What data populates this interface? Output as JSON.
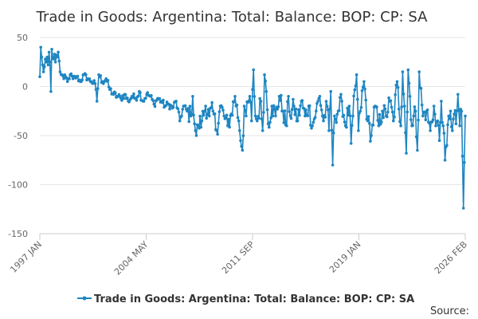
{
  "chart_data": {
    "type": "line",
    "title": "Trade in Goods: Argentina: Total: Balance: BOP: CP: SA",
    "xlabel": "",
    "ylabel": "",
    "ylim": [
      -150,
      50
    ],
    "yticks": [
      50,
      0,
      -50,
      -100,
      -150
    ],
    "x_start": "1997 JAN",
    "x_end": "2026 FEB",
    "xtick_labels": [
      "1997 JAN",
      "2004 MAY",
      "2011 SEP",
      "2019 JAN",
      "2026 FEB"
    ],
    "series": [
      {
        "name": "Trade in Goods: Argentina: Total: Balance: BOP: CP: SA",
        "color": "#1f86c2",
        "anchors": [
          [
            0,
            10
          ],
          [
            1,
            40
          ],
          [
            2,
            30
          ],
          [
            3,
            22
          ],
          [
            4,
            15
          ],
          [
            5,
            20
          ],
          [
            6,
            28
          ],
          [
            7,
            25
          ],
          [
            8,
            30
          ],
          [
            9,
            22
          ],
          [
            10,
            35
          ],
          [
            11,
            25
          ],
          [
            12,
            -5
          ],
          [
            13,
            38
          ],
          [
            14,
            30
          ],
          [
            15,
            28
          ],
          [
            16,
            33
          ],
          [
            17,
            25
          ],
          [
            18,
            32
          ],
          [
            19,
            30
          ],
          [
            20,
            35
          ],
          [
            22,
            15
          ],
          [
            24,
            12
          ],
          [
            26,
            8
          ],
          [
            28,
            10
          ],
          [
            30,
            5
          ],
          [
            33,
            12
          ],
          [
            36,
            8
          ],
          [
            40,
            10
          ],
          [
            44,
            5
          ],
          [
            48,
            12
          ],
          [
            52,
            8
          ],
          [
            56,
            5
          ],
          [
            60,
            3
          ],
          [
            62,
            -15
          ],
          [
            64,
            12
          ],
          [
            68,
            5
          ],
          [
            72,
            8
          ],
          [
            76,
            -3
          ],
          [
            80,
            -8
          ],
          [
            84,
            -10
          ],
          [
            88,
            -12
          ],
          [
            92,
            -8
          ],
          [
            96,
            -15
          ],
          [
            100,
            -10
          ],
          [
            104,
            -12
          ],
          [
            108,
            -5
          ],
          [
            112,
            -15
          ],
          [
            116,
            -8
          ],
          [
            120,
            -10
          ],
          [
            124,
            -18
          ],
          [
            128,
            -12
          ],
          [
            132,
            -15
          ],
          [
            136,
            -20
          ],
          [
            140,
            -18
          ],
          [
            144,
            -22
          ],
          [
            148,
            -15
          ],
          [
            152,
            -35
          ],
          [
            156,
            -20
          ],
          [
            160,
            -25
          ],
          [
            164,
            -30
          ],
          [
            166,
            -10
          ],
          [
            168,
            -38
          ],
          [
            170,
            -50
          ],
          [
            172,
            -40
          ],
          [
            176,
            -35
          ],
          [
            180,
            -20
          ],
          [
            184,
            -30
          ],
          [
            188,
            -25
          ],
          [
            192,
            -45
          ],
          [
            196,
            -20
          ],
          [
            200,
            -30
          ],
          [
            204,
            -40
          ],
          [
            208,
            -28
          ],
          [
            212,
            -10
          ],
          [
            216,
            -35
          ],
          [
            220,
            -65
          ],
          [
            222,
            -20
          ],
          [
            224,
            -30
          ],
          [
            228,
            -10
          ],
          [
            230,
            -35
          ],
          [
            232,
            17
          ],
          [
            234,
            -30
          ],
          [
            236,
            -35
          ],
          [
            240,
            -15
          ],
          [
            242,
            -45
          ],
          [
            244,
            12
          ],
          [
            246,
            -5
          ],
          [
            248,
            -38
          ],
          [
            252,
            -20
          ],
          [
            256,
            -30
          ],
          [
            260,
            -10
          ],
          [
            264,
            -25
          ],
          [
            268,
            -40
          ],
          [
            270,
            -10
          ],
          [
            272,
            -30
          ],
          [
            276,
            -20
          ],
          [
            280,
            -35
          ],
          [
            284,
            -15
          ],
          [
            288,
            -30
          ],
          [
            292,
            -20
          ],
          [
            296,
            -40
          ],
          [
            300,
            -25
          ],
          [
            304,
            -10
          ],
          [
            308,
            -35
          ],
          [
            312,
            -20
          ],
          [
            314,
            -45
          ],
          [
            316,
            -5
          ],
          [
            318,
            -80
          ],
          [
            320,
            -30
          ],
          [
            324,
            -25
          ],
          [
            328,
            -15
          ],
          [
            332,
            -40
          ],
          [
            336,
            -20
          ],
          [
            338,
            -58
          ],
          [
            340,
            -30
          ],
          [
            344,
            12
          ],
          [
            346,
            -45
          ],
          [
            348,
            -25
          ],
          [
            352,
            5
          ],
          [
            356,
            -35
          ],
          [
            360,
            -50
          ],
          [
            364,
            -20
          ],
          [
            368,
            -40
          ],
          [
            372,
            -25
          ],
          [
            376,
            -30
          ],
          [
            380,
            -15
          ],
          [
            384,
            -35
          ],
          [
            388,
            5
          ],
          [
            392,
            -40
          ],
          [
            394,
            15
          ],
          [
            396,
            -20
          ],
          [
            398,
            -68
          ],
          [
            400,
            17
          ],
          [
            402,
            -10
          ],
          [
            404,
            -40
          ],
          [
            408,
            -25
          ],
          [
            410,
            -65
          ],
          [
            412,
            15
          ],
          [
            416,
            -30
          ],
          [
            420,
            -25
          ],
          [
            424,
            -45
          ],
          [
            428,
            -20
          ],
          [
            430,
            -40
          ],
          [
            432,
            -35
          ],
          [
            434,
            -55
          ],
          [
            436,
            -15
          ],
          [
            438,
            -40
          ],
          [
            440,
            -75
          ],
          [
            442,
            -60
          ],
          [
            444,
            -30
          ],
          [
            446,
            -25
          ],
          [
            448,
            -45
          ],
          [
            450,
            -28
          ],
          [
            452,
            -38
          ],
          [
            454,
            -8
          ],
          [
            456,
            -40
          ],
          [
            458,
            -25
          ],
          [
            460,
            -124
          ],
          [
            462,
            -30
          ]
        ]
      }
    ],
    "legend": [
      "Trade in Goods: Argentina: Total: Balance: BOP: CP: SA"
    ],
    "legend_position": "bottom",
    "grid": true,
    "source_label": "Source:"
  }
}
